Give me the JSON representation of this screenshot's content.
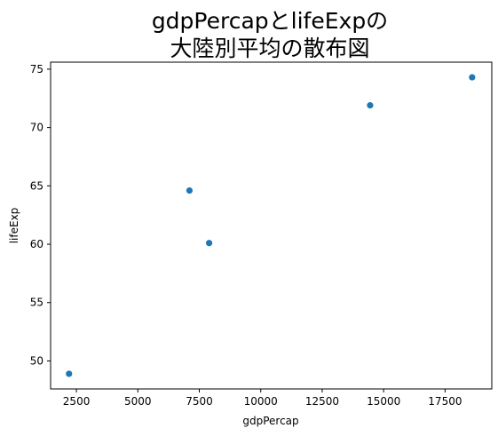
{
  "chart_data": {
    "type": "scatter",
    "title_lines": [
      "gdpPercapとlifeExpの",
      "大陸別平均の散布図"
    ],
    "xlabel": "gdpPercap",
    "ylabel": "lifeExp",
    "x": [
      2200,
      7100,
      7900,
      14450,
      18600
    ],
    "y": [
      48.9,
      64.6,
      60.1,
      71.9,
      74.3
    ],
    "xlim": [
      1450,
      19400
    ],
    "ylim": [
      47.6,
      75.6
    ],
    "xticks": [
      2500,
      5000,
      7500,
      10000,
      12500,
      15000,
      17500
    ],
    "yticks": [
      50,
      55,
      60,
      65,
      70,
      75
    ],
    "marker_color": "#1f77b4",
    "grid": false,
    "legend": "none"
  }
}
